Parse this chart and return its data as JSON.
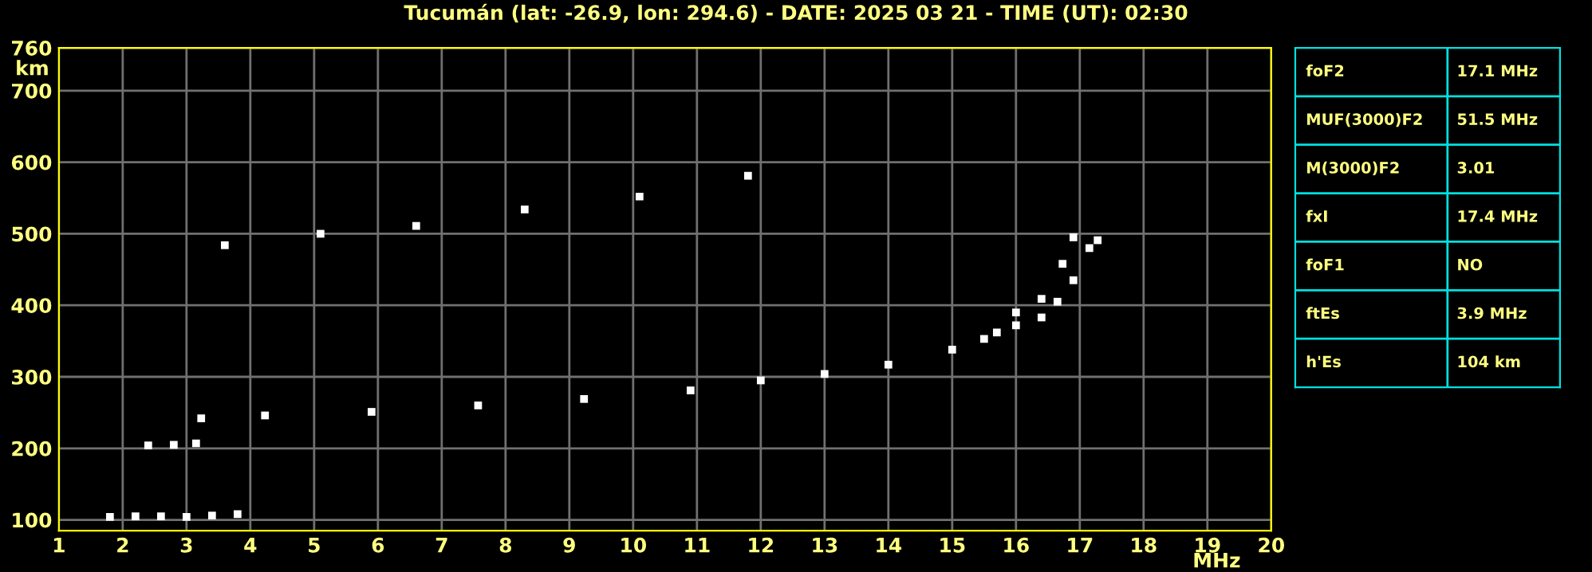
{
  "chart_data": [
    {
      "type": "scatter",
      "title": "Tucumán (lat: -26.9, lon: 294.6) - DATE: 2025 03 21 - TIME (UT): 02:30",
      "xlabel": "MHz",
      "ylabel": "km",
      "xlim": [
        1,
        20
      ],
      "ylim": [
        85,
        760
      ],
      "xticks": [
        1,
        2,
        3,
        4,
        5,
        6,
        7,
        8,
        9,
        10,
        11,
        12,
        13,
        14,
        15,
        16,
        17,
        18,
        19,
        20
      ],
      "yticks": [
        100,
        200,
        300,
        400,
        500,
        600,
        700,
        760
      ],
      "grid": true,
      "marker": "square",
      "legend": false,
      "series": [
        {
          "color": "#ffffff",
          "x": [
            1.8,
            2.2,
            2.6,
            3.0,
            3.4,
            3.8
          ],
          "values": [
            104,
            105,
            105,
            104,
            106,
            108
          ]
        },
        {
          "color": "#ffffff",
          "x": [
            2.4,
            2.8,
            3.15
          ],
          "values": [
            204,
            205,
            207
          ]
        },
        {
          "color": "#ffffff",
          "x": [
            3.23,
            4.23,
            5.9,
            7.57,
            9.23,
            10.9,
            12,
            13,
            14,
            15,
            15.5,
            16,
            16.4,
            16.73,
            16.9
          ],
          "values": [
            242,
            246,
            251,
            260,
            269,
            281,
            295,
            304,
            317,
            338,
            353,
            390,
            409,
            458,
            495
          ]
        },
        {
          "color": "#ffffff",
          "x": [
            15.7,
            16,
            16.4,
            16.65,
            16.9,
            17.15,
            17.28
          ],
          "values": [
            362,
            372,
            383,
            405,
            435,
            480,
            491
          ]
        },
        {
          "color": "#ffffff",
          "x": [
            3.6,
            5.1,
            6.6,
            8.3,
            10.1,
            11.8
          ],
          "values": [
            484,
            500,
            511,
            534,
            552,
            581
          ]
        }
      ]
    },
    {
      "type": "other",
      "categories": [
        "foF2",
        "MUF(3000)F2",
        "M(3000)F2",
        "fxI",
        "foF1",
        "ftEs",
        "h'Es"
      ],
      "value_labels": [
        "17.1 MHz",
        "51.5 MHz",
        "3.01",
        "17.4 MHz",
        "NO",
        "3.9 MHz",
        "104 km"
      ]
    }
  ]
}
